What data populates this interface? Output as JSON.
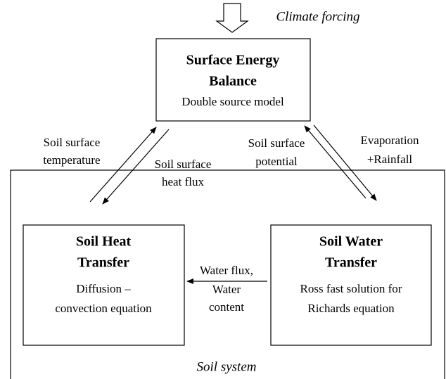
{
  "climate_forcing": "Climate forcing",
  "container": {
    "label": "Soil system"
  },
  "nodes": [
    {
      "title": [
        "Surface Energy",
        "Balance"
      ],
      "subtitle": [
        "Double source model"
      ]
    },
    {
      "title": [
        "Soil Heat",
        "Transfer"
      ],
      "subtitle": [
        "Diffusion –",
        "convection equation"
      ]
    },
    {
      "title": [
        "Soil Water",
        "Transfer"
      ],
      "subtitle": [
        "Ross fast solution for",
        "Richards equation"
      ]
    }
  ],
  "edges": [
    {
      "label": [
        "Soil surface",
        "temperature"
      ]
    },
    {
      "label": [
        "Soil surface",
        "heat flux"
      ]
    },
    {
      "label": [
        "Soil surface",
        "potential"
      ]
    },
    {
      "label": [
        "Evaporation",
        "+Rainfall"
      ]
    },
    {
      "label": [
        "Water flux,",
        "Water",
        "content"
      ]
    }
  ]
}
